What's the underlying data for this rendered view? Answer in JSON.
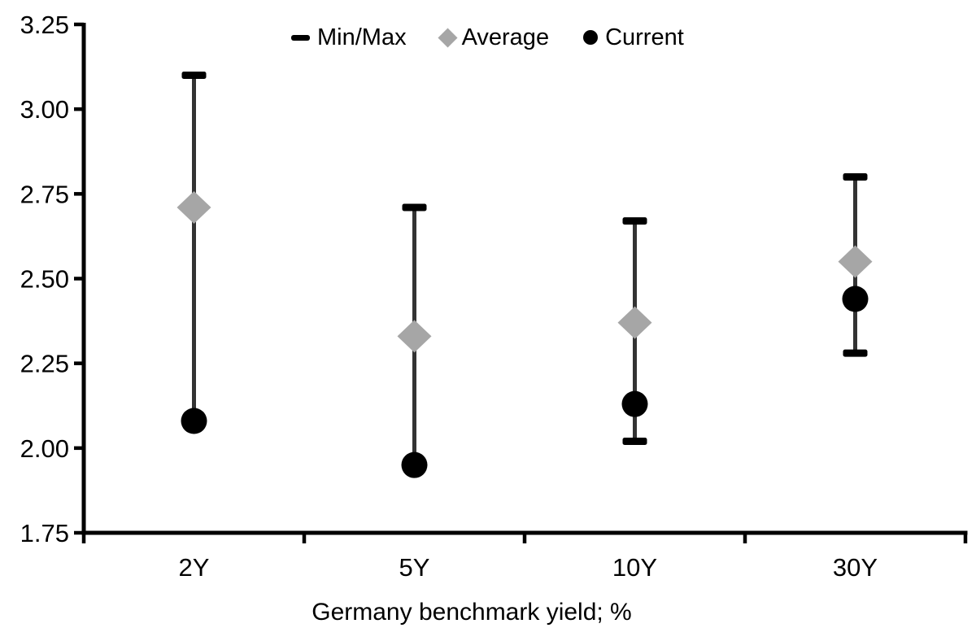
{
  "chart_data": {
    "type": "scatter",
    "subtype": "min-max range (high-low lines) with average and current point markers",
    "title": "",
    "xlabel": "Germany benchmark yield; %",
    "ylabel": "",
    "categories": [
      "2Y",
      "5Y",
      "10Y",
      "30Y"
    ],
    "series": [
      {
        "name": "Min/Max",
        "role": "range",
        "min": [
          2.08,
          1.95,
          2.02,
          2.28
        ],
        "max": [
          3.1,
          2.71,
          2.67,
          2.8
        ]
      },
      {
        "name": "Average",
        "role": "point",
        "marker": "diamond",
        "values": [
          2.71,
          2.33,
          2.37,
          2.55
        ]
      },
      {
        "name": "Current",
        "role": "point",
        "marker": "circle",
        "values": [
          2.08,
          1.95,
          2.13,
          2.44
        ]
      }
    ],
    "ylim": [
      1.75,
      3.25
    ],
    "yticks": [
      3.25,
      3.0,
      2.75,
      2.5,
      2.25,
      2.0,
      1.75
    ],
    "ytick_labels": [
      "3.25",
      "3.00",
      "2.75",
      "2.50",
      "2.25",
      "2.00",
      "1.75"
    ],
    "grid": false,
    "legend": {
      "position": "top-center",
      "items": [
        {
          "label": "Min/Max",
          "marker": "dash",
          "color": "#000000"
        },
        {
          "label": "Average",
          "marker": "diamond",
          "color": "#a6a6a6"
        },
        {
          "label": "Current",
          "marker": "circle",
          "color": "#000000"
        }
      ]
    },
    "colors": {
      "range_line": "#333333",
      "range_cap": "#000000",
      "average_fill": "#a6a6a6",
      "current_fill": "#000000",
      "axis": "#000000",
      "text": "#000000",
      "background": "#ffffff"
    }
  }
}
